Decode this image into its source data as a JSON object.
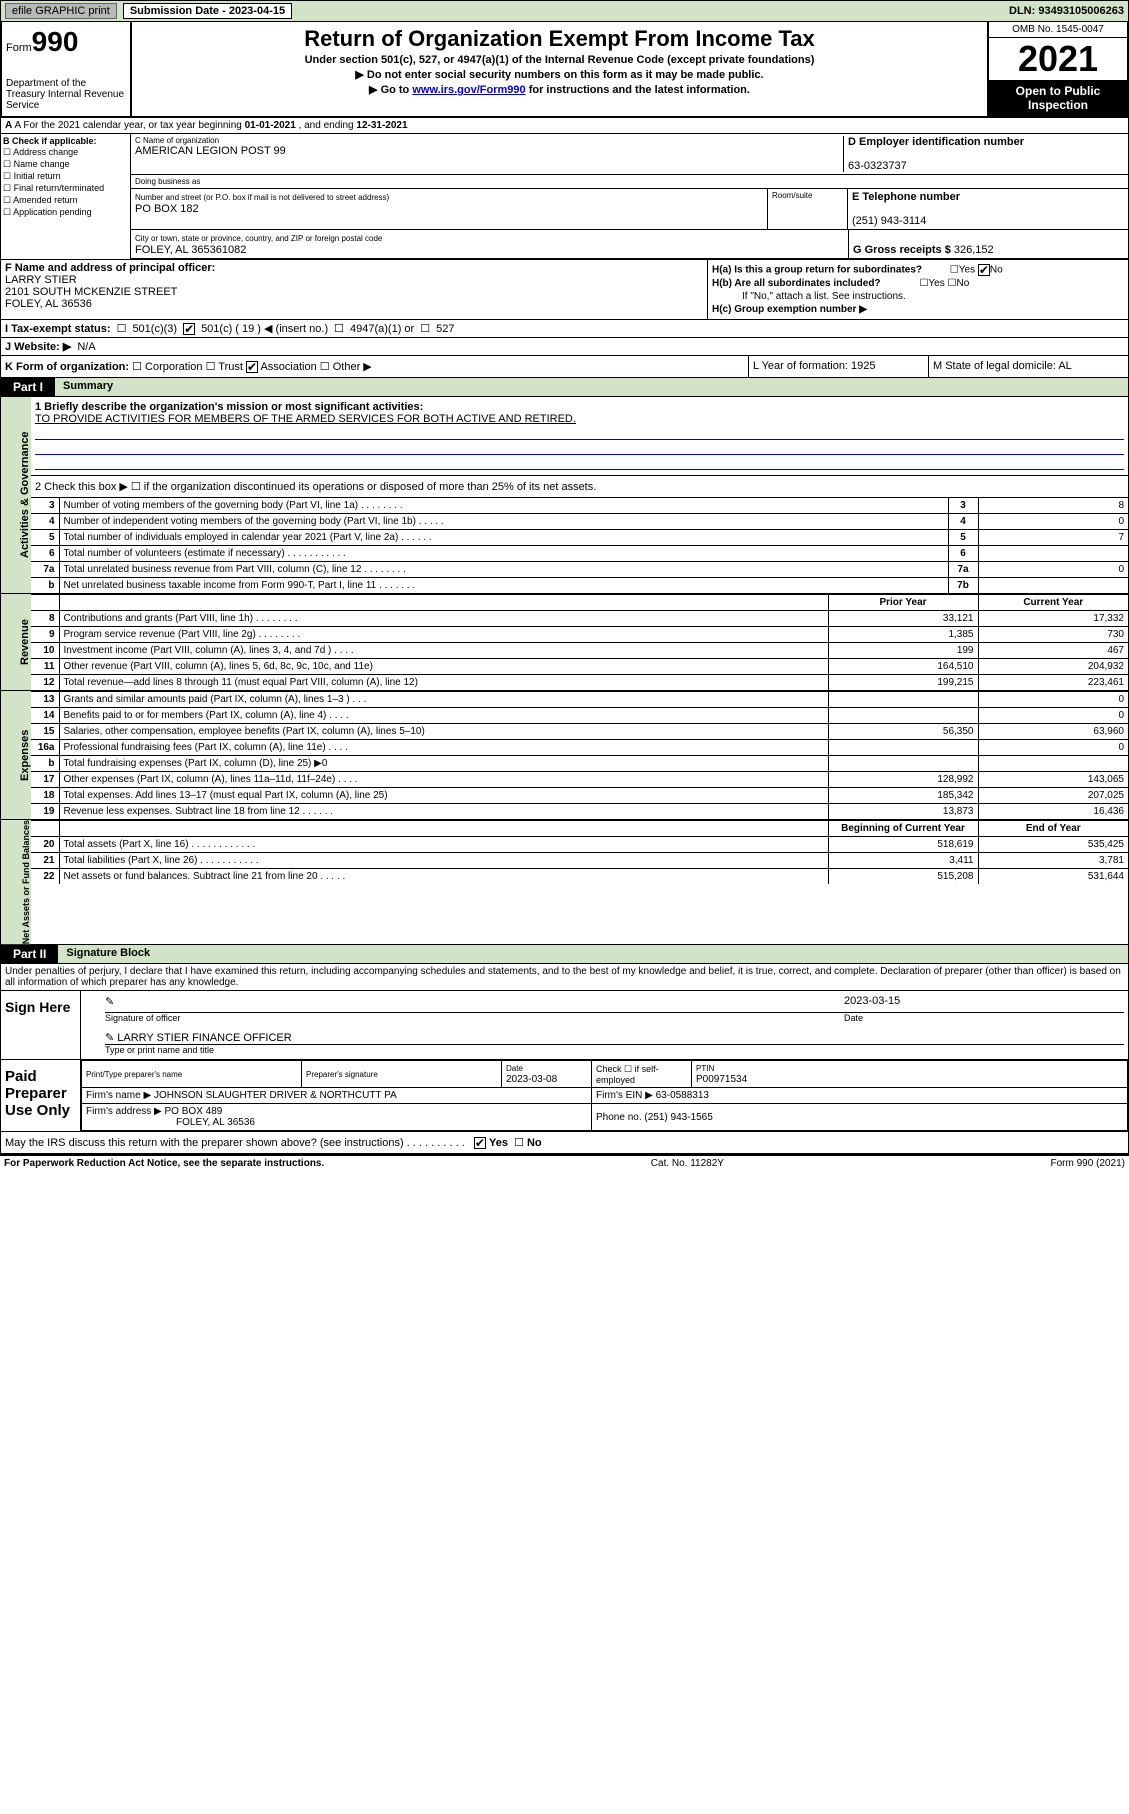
{
  "top_bar": {
    "efile": "efile GRAPHIC print",
    "submission_label": "Submission Date - 2023-04-15",
    "dln": "DLN: 93493105006263"
  },
  "header": {
    "form_prefix": "Form",
    "form_number": "990",
    "title": "Return of Organization Exempt From Income Tax",
    "subtitle": "Under section 501(c), 527, or 4947(a)(1) of the Internal Revenue Code (except private foundations)",
    "note1": "▶ Do not enter social security numbers on this form as it may be made public.",
    "note2_pre": "▶ Go to ",
    "note2_link": "www.irs.gov/Form990",
    "note2_post": " for instructions and the latest information.",
    "dept": "Department of the Treasury Internal Revenue Service",
    "omb": "OMB No. 1545-0047",
    "year": "2021",
    "open": "Open to Public Inspection"
  },
  "section_a": {
    "text_pre": "A For the 2021 calendar year, or tax year beginning ",
    "begin": "01-01-2021",
    "mid": " , and ending ",
    "end": "12-31-2021"
  },
  "section_b": {
    "label": "B Check if applicable:",
    "opts": [
      "Address change",
      "Name change",
      "Initial return",
      "Final return/terminated",
      "Amended return",
      "Application pending"
    ]
  },
  "section_c": {
    "name_label": "C Name of organization",
    "name": "AMERICAN LEGION POST 99",
    "dba_label": "Doing business as",
    "street_label": "Number and street (or P.O. box if mail is not delivered to street address)",
    "street": "PO BOX 182",
    "room_label": "Room/suite",
    "city_label": "City or town, state or province, country, and ZIP or foreign postal code",
    "city": "FOLEY, AL  365361082"
  },
  "section_d": {
    "label": "D Employer identification number",
    "value": "63-0323737"
  },
  "section_e": {
    "label": "E Telephone number",
    "value": "(251) 943-3114"
  },
  "section_g": {
    "label": "G Gross receipts $",
    "value": "326,152"
  },
  "section_f": {
    "label": "F Name and address of principal officer:",
    "name": "LARRY STIER",
    "addr1": "2101 SOUTH MCKENZIE STREET",
    "addr2": "FOLEY, AL  36536"
  },
  "section_h": {
    "ha": "H(a)  Is this a group return for subordinates?",
    "hb": "H(b)  Are all subordinates included?",
    "hb_note": "If \"No,\" attach a list. See instructions.",
    "hc": "H(c)  Group exemption number ▶",
    "yes": "Yes",
    "no": "No"
  },
  "line_i": {
    "label": "I  Tax-exempt status:",
    "c3": "501(c)(3)",
    "c": "501(c) ( 19 ) ◀ (insert no.)",
    "a1": "4947(a)(1) or",
    "527": "527"
  },
  "line_j": {
    "label": "J  Website: ▶",
    "value": "N/A"
  },
  "line_k": {
    "label": "K Form of organization:",
    "corp": "Corporation",
    "trust": "Trust",
    "assoc": "Association",
    "other": "Other ▶",
    "l": "L Year of formation: 1925",
    "m": "M State of legal domicile: AL"
  },
  "part1": {
    "header": "Part I",
    "title": "Summary",
    "line1_label": "1  Briefly describe the organization's mission or most significant activities:",
    "mission": "TO PROVIDE ACTIVITIES FOR MEMBERS OF THE ARMED SERVICES FOR BOTH ACTIVE AND RETIRED.",
    "line2": "2   Check this box ▶ ☐  if the organization discontinued its operations or disposed of more than 25% of its net assets.",
    "sides": {
      "gov": "Activities & Governance",
      "rev": "Revenue",
      "exp": "Expenses",
      "net": "Net Assets or Fund Balances"
    },
    "rows_gov": [
      {
        "n": "3",
        "t": "Number of voting members of the governing body (Part VI, line 1a)   .    .    .    .    .    .    .    .",
        "box": "3",
        "v": "8"
      },
      {
        "n": "4",
        "t": "Number of independent voting members of the governing body (Part VI, line 1b)   .    .    .    .    .",
        "box": "4",
        "v": "0"
      },
      {
        "n": "5",
        "t": "Total number of individuals employed in calendar year 2021 (Part V, line 2a)   .    .    .    .    .    .",
        "box": "5",
        "v": "7"
      },
      {
        "n": "6",
        "t": "Total number of volunteers (estimate if necessary)   .    .    .    .    .    .    .    .    .    .    .",
        "box": "6",
        "v": ""
      },
      {
        "n": "7a",
        "t": "Total unrelated business revenue from Part VIII, column (C), line 12   .    .    .    .    .    .    .    .",
        "box": "7a",
        "v": "0"
      },
      {
        "n": "b",
        "t": "Net unrelated business taxable income from Form 990-T, Part I, line 11   .    .    .    .    .    .    .",
        "box": "7b",
        "v": ""
      }
    ],
    "col_headers": {
      "prior": "Prior Year",
      "current": "Current Year",
      "begin": "Beginning of Current Year",
      "end": "End of Year"
    },
    "rows_rev": [
      {
        "n": "8",
        "t": "Contributions and grants (Part VIII, line 1h)   .    .    .    .    .    .    .    .",
        "p": "33,121",
        "c": "17,332"
      },
      {
        "n": "9",
        "t": "Program service revenue (Part VIII, line 2g)   .    .    .    .    .    .    .    .",
        "p": "1,385",
        "c": "730"
      },
      {
        "n": "10",
        "t": "Investment income (Part VIII, column (A), lines 3, 4, and 7d )   .    .    .    .",
        "p": "199",
        "c": "467"
      },
      {
        "n": "11",
        "t": "Other revenue (Part VIII, column (A), lines 5, 6d, 8c, 9c, 10c, and 11e)",
        "p": "164,510",
        "c": "204,932"
      },
      {
        "n": "12",
        "t": "Total revenue—add lines 8 through 11 (must equal Part VIII, column (A), line 12)",
        "p": "199,215",
        "c": "223,461"
      }
    ],
    "rows_exp": [
      {
        "n": "13",
        "t": "Grants and similar amounts paid (Part IX, column (A), lines 1–3 )   .    .    .",
        "p": "",
        "c": "0"
      },
      {
        "n": "14",
        "t": "Benefits paid to or for members (Part IX, column (A), line 4)   .    .    .    .",
        "p": "",
        "c": "0"
      },
      {
        "n": "15",
        "t": "Salaries, other compensation, employee benefits (Part IX, column (A), lines 5–10)",
        "p": "56,350",
        "c": "63,960"
      },
      {
        "n": "16a",
        "t": "Professional fundraising fees (Part IX, column (A), line 11e)   .    .    .    .",
        "p": "",
        "c": "0"
      },
      {
        "n": "b",
        "t": "Total fundraising expenses (Part IX, column (D), line 25) ▶0",
        "p": "shade",
        "c": "shade"
      },
      {
        "n": "17",
        "t": "Other expenses (Part IX, column (A), lines 11a–11d, 11f–24e)   .    .    .    .",
        "p": "128,992",
        "c": "143,065"
      },
      {
        "n": "18",
        "t": "Total expenses. Add lines 13–17 (must equal Part IX, column (A), line 25)",
        "p": "185,342",
        "c": "207,025"
      },
      {
        "n": "19",
        "t": "Revenue less expenses. Subtract line 18 from line 12   .    .    .    .    .    .",
        "p": "13,873",
        "c": "16,436"
      }
    ],
    "rows_net": [
      {
        "n": "20",
        "t": "Total assets (Part X, line 16)   .    .    .    .    .    .    .    .    .    .    .    .",
        "p": "518,619",
        "c": "535,425"
      },
      {
        "n": "21",
        "t": "Total liabilities (Part X, line 26)   .    .    .    .    .    .    .    .    .    .    .",
        "p": "3,411",
        "c": "3,781"
      },
      {
        "n": "22",
        "t": "Net assets or fund balances. Subtract line 21 from line 20   .    .    .    .    .",
        "p": "515,208",
        "c": "531,644"
      }
    ]
  },
  "part2": {
    "header": "Part II",
    "title": "Signature Block",
    "declaration": "Under penalties of perjury, I declare that I have examined this return, including accompanying schedules and statements, and to the best of my knowledge and belief, it is true, correct, and complete. Declaration of preparer (other than officer) is based on all information of which preparer has any knowledge.",
    "sign_here": "Sign Here",
    "sig_officer": "Signature of officer",
    "sig_date_label": "Date",
    "sig_date": "2023-03-15",
    "officer_name": "LARRY STIER  FINANCE OFFICER",
    "type_name": "Type or print name and title",
    "paid": "Paid Preparer Use Only",
    "prep_name_label": "Print/Type preparer's name",
    "prep_sig_label": "Preparer's signature",
    "prep_date_label": "Date",
    "prep_date": "2023-03-08",
    "check_if": "Check ☐ if self-employed",
    "ptin_label": "PTIN",
    "ptin": "P00971534",
    "firm_name_label": "Firm's name    ▶",
    "firm_name": "JOHNSON SLAUGHTER DRIVER & NORTHCUTT PA",
    "firm_ein_label": "Firm's EIN ▶",
    "firm_ein": "63-0588313",
    "firm_addr_label": "Firm's address ▶",
    "firm_addr1": "PO BOX 489",
    "firm_addr2": "FOLEY, AL  36536",
    "phone_label": "Phone no.",
    "phone": "(251) 943-1565",
    "may_irs": "May the IRS discuss this return with the preparer shown above? (see instructions)   .    .    .    .    .    .    .    .    .    .",
    "yes": "Yes",
    "no": "No"
  },
  "footer": {
    "left": "For Paperwork Reduction Act Notice, see the separate instructions.",
    "mid": "Cat. No. 11282Y",
    "right": "Form 990 (2021)"
  }
}
